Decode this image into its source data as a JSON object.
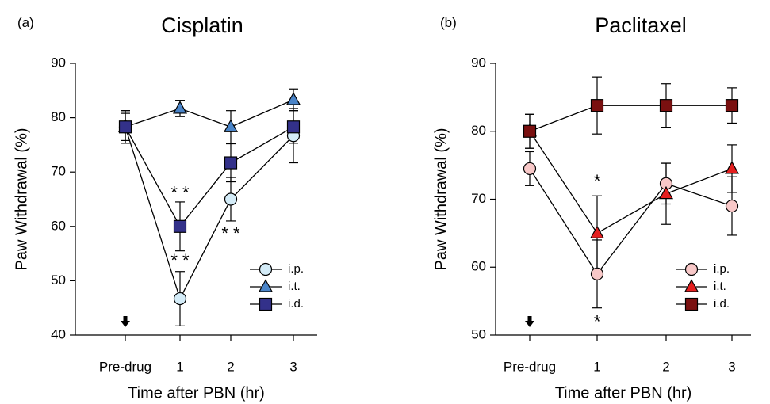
{
  "chart_data": [
    {
      "type": "line",
      "panel_label": "(a)",
      "title": "Cisplatin",
      "xlabel": "Time after PBN (hr)",
      "ylabel": "Paw Withdrawal (%)",
      "categories": [
        "Pre-drug",
        "1",
        "2",
        "3"
      ],
      "ylim": [
        40,
        90
      ],
      "yticks": [
        40,
        50,
        60,
        70,
        80,
        90
      ],
      "grid": false,
      "legend_position": "bottom-right",
      "arrow_at": "Pre-drug",
      "series": [
        {
          "name": "i.p.",
          "marker": "circle",
          "fill": "#d4ecf8",
          "values": [
            78.3,
            46.7,
            65.0,
            76.7
          ],
          "errors": [
            3.0,
            5.0,
            4.0,
            5.0
          ]
        },
        {
          "name": "i.t.",
          "marker": "triangle",
          "fill": "#4a84c8",
          "values": [
            78.3,
            81.7,
            78.3,
            83.3
          ],
          "errors": [
            3.0,
            1.5,
            3.0,
            2.0
          ]
        },
        {
          "name": "i.d.",
          "marker": "square",
          "fill": "#33318a",
          "values": [
            78.3,
            60.0,
            71.7,
            78.3
          ],
          "errors": [
            2.5,
            4.5,
            3.5,
            3.0
          ]
        }
      ],
      "annotations": [
        {
          "text": "* *",
          "category": "1",
          "y": 66.0
        },
        {
          "text": "* *",
          "category": "1",
          "y": 53.5
        },
        {
          "text": "* *",
          "category": "2",
          "y": 58.5
        }
      ]
    },
    {
      "type": "line",
      "panel_label": "(b)",
      "title": "Paclitaxel",
      "xlabel": "Time after PBN (hr)",
      "ylabel": "Paw Withdrawal (%)",
      "categories": [
        "Pre-drug",
        "1",
        "2",
        "3"
      ],
      "ylim": [
        50,
        90
      ],
      "yticks": [
        50,
        60,
        70,
        80,
        90
      ],
      "grid": false,
      "legend_position": "bottom-right",
      "arrow_at": "Pre-drug",
      "series": [
        {
          "name": "i.p.",
          "marker": "circle",
          "fill": "#f8c8c8",
          "values": [
            74.5,
            59.0,
            72.3,
            69.0
          ],
          "errors": [
            2.5,
            5.0,
            3.0,
            4.3
          ]
        },
        {
          "name": "i.t.",
          "marker": "triangle",
          "fill": "#e41f1f",
          "values": [
            80.0,
            65.0,
            70.8,
            74.5
          ],
          "errors": [
            2.5,
            5.5,
            4.5,
            3.5
          ]
        },
        {
          "name": "i.d.",
          "marker": "square",
          "fill": "#7a1010",
          "values": [
            80.0,
            83.8,
            83.8,
            83.8
          ],
          "errors": [
            2.5,
            4.2,
            3.2,
            2.6
          ]
        }
      ],
      "annotations": [
        {
          "text": "*",
          "category": "1",
          "y": 72.5
        },
        {
          "text": "*",
          "category": "1",
          "y": 51.8
        }
      ]
    }
  ]
}
